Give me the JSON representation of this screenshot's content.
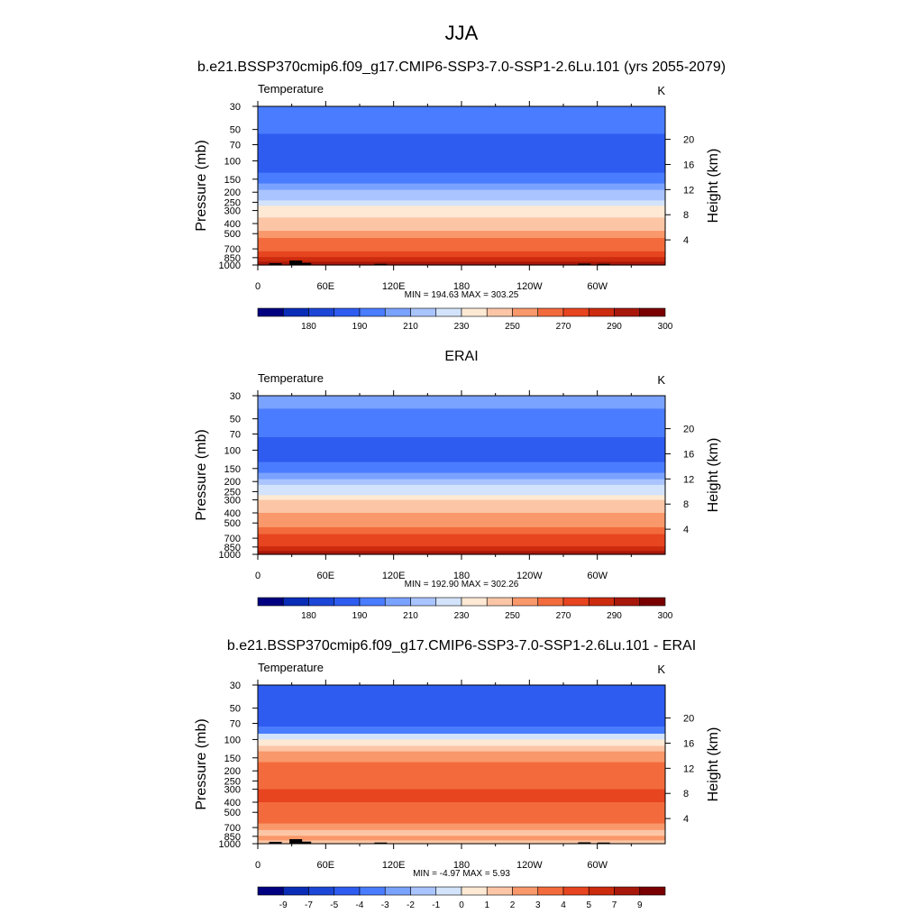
{
  "figure": {
    "title": "JJA"
  },
  "chart_data": [
    {
      "type": "heatmap",
      "title": "b.e21.BSSP370cmip6.f09_g17.CMIP6-SSP3-7.0-SSP1-2.6Lu.101 (yrs 2055-2079)",
      "field_label": "Temperature",
      "units": "K",
      "ylabel": "Pressure (mb)",
      "ylabel_right": "Height (km)",
      "x_ticks": [
        "0",
        "60E",
        "120E",
        "180",
        "120W",
        "60W"
      ],
      "x_tick_values": [
        0,
        60,
        120,
        180,
        240,
        300
      ],
      "xlim": [
        0,
        360
      ],
      "y_ticks": [
        "30",
        "50",
        "70",
        "100",
        "150",
        "200",
        "250",
        "300",
        "400",
        "500",
        "700",
        "850",
        "1000"
      ],
      "y_tick_values": [
        30,
        50,
        70,
        100,
        150,
        200,
        250,
        300,
        400,
        500,
        700,
        850,
        1000
      ],
      "ylim": [
        30,
        1000
      ],
      "y_scale": "log",
      "y_inverted": true,
      "height_ticks": [
        "4",
        "8",
        "12",
        "16",
        "20"
      ],
      "height_tick_values": [
        4,
        8,
        12,
        16,
        20
      ],
      "stats": "MIN = 194.63  MAX = 303.25",
      "colorbar_labels": [
        "180",
        "190",
        "210",
        "230",
        "250",
        "270",
        "290",
        "300"
      ],
      "colorbar_colors": [
        "#000080",
        "#0a2db8",
        "#1c46d6",
        "#2e5cf0",
        "#4a7cff",
        "#7aa2ff",
        "#a9c4ff",
        "#d2e3fb",
        "#fde9d4",
        "#fcc6a6",
        "#f9986a",
        "#f36b3c",
        "#e74420",
        "#cc2b0e",
        "#a8180a",
        "#7a0000"
      ],
      "pressure_levels": [
        30,
        40,
        55,
        75,
        100,
        130,
        165,
        190,
        215,
        240,
        270,
        300,
        350,
        400,
        470,
        550,
        640,
        740,
        840,
        930,
        1000
      ],
      "band_colors": [
        "#4a7cff",
        "#4a7cff",
        "#2e5cf0",
        "#2e5cf0",
        "#2e5cf0",
        "#4a7cff",
        "#7aa2ff",
        "#a9c4ff",
        "#a9c4ff",
        "#d2e3fb",
        "#fde9d4",
        "#fde9d4",
        "#fcc6a6",
        "#fcc6a6",
        "#f9986a",
        "#f36b3c",
        "#f36b3c",
        "#e74420",
        "#cc2b0e",
        "#a8180a"
      ],
      "topography": [
        [
          10,
          1000,
          960
        ],
        [
          28,
          1000,
          905
        ],
        [
          36,
          1000,
          955
        ],
        [
          103,
          1000,
          975
        ],
        [
          283,
          1000,
          970
        ],
        [
          300,
          1000,
          975
        ]
      ]
    },
    {
      "type": "heatmap",
      "title": "ERAI",
      "field_label": "Temperature",
      "units": "K",
      "ylabel": "Pressure (mb)",
      "ylabel_right": "Height (km)",
      "x_ticks": [
        "0",
        "60E",
        "120E",
        "180",
        "120W",
        "60W"
      ],
      "x_tick_values": [
        0,
        60,
        120,
        180,
        240,
        300
      ],
      "xlim": [
        0,
        360
      ],
      "y_ticks": [
        "30",
        "50",
        "70",
        "100",
        "150",
        "200",
        "250",
        "300",
        "400",
        "500",
        "700",
        "850",
        "1000"
      ],
      "y_tick_values": [
        30,
        50,
        70,
        100,
        150,
        200,
        250,
        300,
        400,
        500,
        700,
        850,
        1000
      ],
      "ylim": [
        30,
        1000
      ],
      "y_scale": "log",
      "y_inverted": true,
      "height_ticks": [
        "4",
        "8",
        "12",
        "16",
        "20"
      ],
      "height_tick_values": [
        4,
        8,
        12,
        16,
        20
      ],
      "stats": "MIN = 192.90  MAX = 302.26",
      "colorbar_labels": [
        "180",
        "190",
        "210",
        "230",
        "250",
        "270",
        "290",
        "300"
      ],
      "colorbar_colors": [
        "#000080",
        "#0a2db8",
        "#1c46d6",
        "#2e5cf0",
        "#4a7cff",
        "#7aa2ff",
        "#a9c4ff",
        "#d2e3fb",
        "#fde9d4",
        "#fcc6a6",
        "#f9986a",
        "#f36b3c",
        "#e74420",
        "#cc2b0e",
        "#a8180a",
        "#7a0000"
      ],
      "pressure_levels": [
        30,
        40,
        55,
        75,
        100,
        130,
        165,
        190,
        215,
        240,
        270,
        300,
        350,
        400,
        470,
        550,
        640,
        740,
        840,
        930,
        1000
      ],
      "band_colors": [
        "#7aa2ff",
        "#4a7cff",
        "#4a7cff",
        "#2e5cf0",
        "#2e5cf0",
        "#4a7cff",
        "#7aa2ff",
        "#a9c4ff",
        "#d2e3fb",
        "#d2e3fb",
        "#fde9d4",
        "#fcc6a6",
        "#fcc6a6",
        "#f9986a",
        "#f9986a",
        "#f36b3c",
        "#e74420",
        "#e74420",
        "#cc2b0e",
        "#a8180a"
      ],
      "topography": []
    },
    {
      "type": "heatmap",
      "title": "b.e21.BSSP370cmip6.f09_g17.CMIP6-SSP3-7.0-SSP1-2.6Lu.101 - ERAI",
      "field_label": "Temperature",
      "units": "K",
      "ylabel": "Pressure (mb)",
      "ylabel_right": "Height (km)",
      "x_ticks": [
        "0",
        "60E",
        "120E",
        "180",
        "120W",
        "60W"
      ],
      "x_tick_values": [
        0,
        60,
        120,
        180,
        240,
        300
      ],
      "xlim": [
        0,
        360
      ],
      "y_ticks": [
        "30",
        "50",
        "70",
        "100",
        "150",
        "200",
        "250",
        "300",
        "400",
        "500",
        "700",
        "850",
        "1000"
      ],
      "y_tick_values": [
        30,
        50,
        70,
        100,
        150,
        200,
        250,
        300,
        400,
        500,
        700,
        850,
        1000
      ],
      "ylim": [
        30,
        1000
      ],
      "y_scale": "log",
      "y_inverted": true,
      "height_ticks": [
        "4",
        "8",
        "12",
        "16",
        "20"
      ],
      "height_tick_values": [
        4,
        8,
        12,
        16,
        20
      ],
      "stats": "MIN =  -4.97  MAX =   5.93",
      "colorbar_labels": [
        "-9",
        "-7",
        "-5",
        "-4",
        "-3",
        "-2",
        "-1",
        "0",
        "1",
        "2",
        "3",
        "4",
        "5",
        "7",
        "9"
      ],
      "colorbar_colors": [
        "#000080",
        "#0a2db8",
        "#1c46d6",
        "#2e5cf0",
        "#4a7cff",
        "#7aa2ff",
        "#a9c4ff",
        "#d2e3fb",
        "#fde9d4",
        "#fcc6a6",
        "#f9986a",
        "#f36b3c",
        "#e74420",
        "#cc2b0e",
        "#a8180a",
        "#7a0000"
      ],
      "pressure_levels": [
        30,
        40,
        55,
        75,
        88,
        100,
        115,
        130,
        165,
        200,
        250,
        300,
        350,
        400,
        470,
        550,
        640,
        740,
        840,
        930,
        1000
      ],
      "band_colors": [
        "#2e5cf0",
        "#2e5cf0",
        "#2e5cf0",
        "#4a7cff",
        "#d2e3fb",
        "#fde9d4",
        "#fcc6a6",
        "#f9986a",
        "#f36b3c",
        "#f36b3c",
        "#f36b3c",
        "#e74420",
        "#e74420",
        "#f36b3c",
        "#f36b3c",
        "#f36b3c",
        "#f9986a",
        "#fcc6a6",
        "#f9986a",
        "#fcc6a6"
      ],
      "topography": [
        [
          10,
          1000,
          960
        ],
        [
          28,
          1000,
          905
        ],
        [
          36,
          1000,
          955
        ],
        [
          103,
          1000,
          975
        ],
        [
          283,
          1000,
          970
        ],
        [
          300,
          1000,
          975
        ]
      ]
    }
  ]
}
